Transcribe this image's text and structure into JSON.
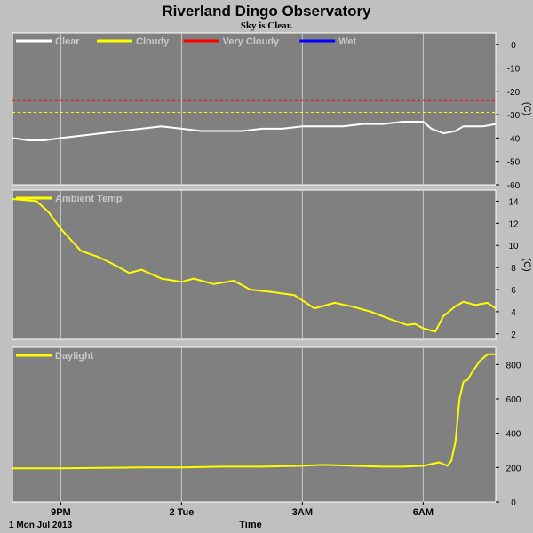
{
  "title": "Riverland Dingo Observatory",
  "subtitle": "Sky is Clear.",
  "colors": {
    "page_bg": "#c0c0c0",
    "plot_bg": "#808080",
    "grid": "#c8c8c8",
    "clear": "#ffffff",
    "cloudy": "#ffff00",
    "very_cloudy": "#ff0000",
    "wet": "#0000ff",
    "text": "#000000"
  },
  "x_axis": {
    "label": "Time",
    "date_label": "1 Mon Jul 2013",
    "ticks": [
      {
        "label": "9PM",
        "hours": 2.0
      },
      {
        "label": "2 Tue",
        "hours": 5.0
      },
      {
        "label": "3AM",
        "hours": 8.0
      },
      {
        "label": "6AM",
        "hours": 11.0
      }
    ],
    "range_hours": [
      0.8,
      12.8
    ]
  },
  "chart_data": [
    {
      "type": "line",
      "panel": "sky",
      "ylabel": "(C)",
      "ylim": [
        -60,
        5
      ],
      "yticks": [
        0,
        -10,
        -20,
        -30,
        -40,
        -50,
        -60
      ],
      "grid": true,
      "legend": [
        {
          "name": "Clear",
          "color": "#ffffff"
        },
        {
          "name": "Cloudy",
          "color": "#ffff00"
        },
        {
          "name": "Very Cloudy",
          "color": "#ff0000"
        },
        {
          "name": "Wet",
          "color": "#0000ff"
        }
      ],
      "thresholds": [
        {
          "value": -24,
          "color": "#ff0000"
        },
        {
          "value": -29,
          "color": "#ffff00"
        }
      ],
      "series": [
        {
          "name": "Clear",
          "color": "#ffffff",
          "x": [
            0.8,
            1.2,
            1.6,
            2.0,
            2.5,
            3.0,
            3.5,
            4.0,
            4.5,
            5.0,
            5.5,
            6.0,
            6.5,
            7.0,
            7.5,
            8.0,
            8.5,
            9.0,
            9.5,
            10.0,
            10.5,
            10.8,
            11.0,
            11.2,
            11.5,
            11.8,
            12.0,
            12.5,
            12.8
          ],
          "y": [
            -40,
            -41,
            -41,
            -40,
            -39,
            -38,
            -37,
            -36,
            -35,
            -36,
            -37,
            -37,
            -37,
            -36,
            -36,
            -35,
            -35,
            -35,
            -34,
            -34,
            -33,
            -33,
            -33,
            -36,
            -38,
            -37,
            -35,
            -35,
            -34
          ]
        }
      ]
    },
    {
      "type": "line",
      "panel": "ambient",
      "ylabel": "(C)",
      "ylim": [
        1.5,
        15
      ],
      "yticks": [
        14,
        12,
        10,
        8,
        6,
        4,
        2
      ],
      "grid": true,
      "legend": [
        {
          "name": "Ambient Temp",
          "color": "#ffff00"
        }
      ],
      "series": [
        {
          "name": "Ambient Temp",
          "color": "#ffff00",
          "x": [
            0.8,
            1.4,
            1.7,
            2.0,
            2.5,
            2.9,
            3.2,
            3.7,
            4.0,
            4.5,
            5.0,
            5.3,
            5.8,
            6.3,
            6.7,
            7.2,
            7.8,
            8.3,
            8.8,
            9.2,
            9.7,
            10.2,
            10.6,
            10.8,
            11.0,
            11.3,
            11.5,
            11.8,
            12.0,
            12.3,
            12.6,
            12.8
          ],
          "y": [
            14.2,
            14.0,
            13.0,
            11.5,
            9.5,
            9.0,
            8.5,
            7.5,
            7.8,
            7.0,
            6.7,
            7.0,
            6.5,
            6.8,
            6.0,
            5.8,
            5.5,
            4.3,
            4.8,
            4.5,
            4.0,
            3.3,
            2.8,
            2.9,
            2.5,
            2.2,
            3.6,
            4.5,
            4.9,
            4.6,
            4.8,
            4.3
          ]
        }
      ]
    },
    {
      "type": "line",
      "panel": "daylight",
      "ylabel": "",
      "ylim": [
        0,
        900
      ],
      "yticks": [
        800,
        600,
        400,
        200,
        0
      ],
      "grid": true,
      "legend": [
        {
          "name": "Daylight",
          "color": "#ffff00"
        }
      ],
      "series": [
        {
          "name": "Daylight",
          "color": "#ffff00",
          "x": [
            0.8,
            2.0,
            3.0,
            4.0,
            5.0,
            6.0,
            7.0,
            8.0,
            8.5,
            9.0,
            9.5,
            10.0,
            10.5,
            11.0,
            11.4,
            11.6,
            11.7,
            11.8,
            11.9,
            12.0,
            12.1,
            12.2,
            12.4,
            12.6,
            12.8
          ],
          "y": [
            195,
            195,
            198,
            200,
            200,
            205,
            205,
            210,
            215,
            212,
            208,
            205,
            205,
            210,
            230,
            210,
            240,
            350,
            600,
            700,
            710,
            750,
            820,
            860,
            860
          ]
        }
      ]
    }
  ]
}
